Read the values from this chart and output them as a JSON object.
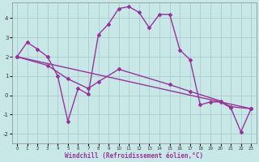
{
  "xlabel": "Windchill (Refroidissement éolien,°C)",
  "bg_color": "#c8e8e8",
  "line_color": "#993399",
  "grid_color": "#aacccc",
  "xlim": [
    -0.5,
    23.5
  ],
  "ylim": [
    -2.5,
    4.8
  ],
  "xticks": [
    0,
    1,
    2,
    3,
    4,
    5,
    6,
    7,
    8,
    9,
    10,
    11,
    12,
    13,
    14,
    15,
    16,
    17,
    18,
    19,
    20,
    21,
    22,
    23
  ],
  "yticks": [
    -2,
    -1,
    0,
    1,
    2,
    3,
    4
  ],
  "line1_x": [
    0,
    1,
    2,
    3,
    4,
    5,
    6,
    7,
    8,
    9,
    10,
    11,
    12,
    13,
    14,
    15,
    16,
    17,
    18,
    19,
    20,
    21,
    22,
    23
  ],
  "line1_y": [
    2.0,
    2.75,
    2.4,
    2.0,
    1.0,
    -1.35,
    0.35,
    0.05,
    3.15,
    3.7,
    4.5,
    4.6,
    4.3,
    3.5,
    4.2,
    4.2,
    2.35,
    1.85,
    -0.5,
    -0.35,
    -0.35,
    -0.65,
    -1.9,
    -0.7
  ],
  "line2_x": [
    0,
    23
  ],
  "line2_y": [
    2.0,
    -0.7
  ],
  "line3_x": [
    0,
    3,
    5,
    7,
    8,
    10,
    15,
    17,
    20,
    21,
    23
  ],
  "line3_y": [
    2.0,
    1.55,
    0.85,
    0.35,
    0.7,
    1.35,
    0.55,
    0.2,
    -0.3,
    -0.6,
    -0.7
  ],
  "marker": "D",
  "markersize": 2,
  "linewidth": 1.0
}
